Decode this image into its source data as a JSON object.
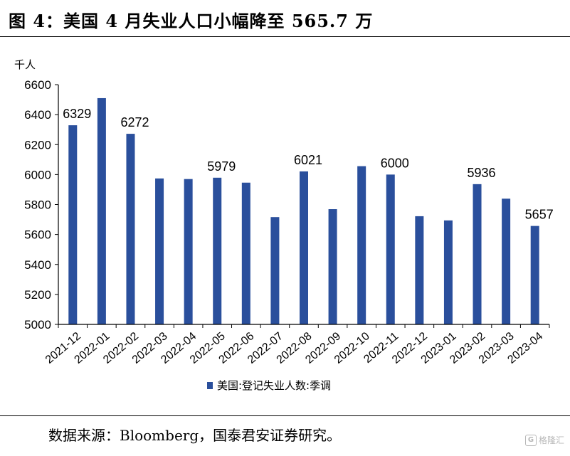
{
  "header": {
    "title": "图 4：美国 4 月失业人口小幅降至 565.7 万"
  },
  "footer": {
    "source": "数据来源：Bloomberg，国泰君安证券研究。",
    "watermark_logo": "G",
    "watermark_text": "格隆汇"
  },
  "colors": {
    "bar": "#2a4f9c",
    "axis": "#000000"
  },
  "chart_data": {
    "type": "bar",
    "title": "",
    "ylabel": "千人",
    "xlabel": "",
    "ylim": [
      5000,
      6600
    ],
    "yticks": [
      5000,
      5200,
      5400,
      5600,
      5800,
      6000,
      6200,
      6400,
      6600
    ],
    "grid": false,
    "legend_position": "bottom",
    "series": [
      {
        "name": "美国:登记失业人数:季调",
        "values": [
          6329,
          6510,
          6272,
          5974,
          5970,
          5979,
          5946,
          5716,
          6021,
          5769,
          6056,
          6000,
          5722,
          5694,
          5936,
          5839,
          5657
        ]
      }
    ],
    "categories": [
      "2021-12",
      "2022-01",
      "2022-02",
      "2022-03",
      "2022-04",
      "2022-05",
      "2022-06",
      "2022-07",
      "2022-08",
      "2022-09",
      "2022-10",
      "2022-11",
      "2022-12",
      "2023-01",
      "2023-02",
      "2023-03",
      "2023-04"
    ],
    "data_labels": [
      {
        "index": 0,
        "text": "6329"
      },
      {
        "index": 2,
        "text": "6272"
      },
      {
        "index": 5,
        "text": "5979"
      },
      {
        "index": 8,
        "text": "6021"
      },
      {
        "index": 11,
        "text": "6000"
      },
      {
        "index": 14,
        "text": "5936"
      },
      {
        "index": 16,
        "text": "5657"
      }
    ]
  }
}
